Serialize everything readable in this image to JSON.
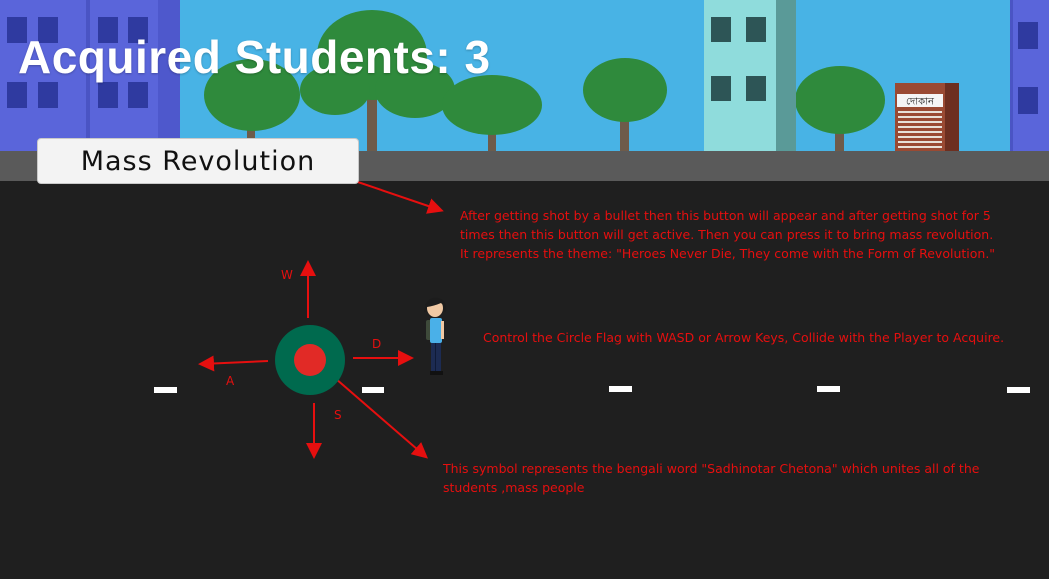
{
  "hud": {
    "acquired_label": "Acquired Students: 3"
  },
  "buttons": {
    "mass_revolution_label": "Mass Revolution"
  },
  "shop": {
    "sign_text": "দোকান"
  },
  "controls": {
    "keys": {
      "up": "W",
      "left": "A",
      "down": "S",
      "right": "D"
    }
  },
  "annotations": {
    "mass_revolution_note": "After getting shot by a bullet then this button will appear and after getting shot for 5 times then this button will get active. Then you can press it to bring mass revolution. It represents the theme: \"Heroes Never Die, They come with the Form of Revolution.\"",
    "control_note": "Control the Circle Flag with WASD or Arrow Keys, Collide with the Player to Acquire.",
    "symbol_note": "This symbol represents the bengali word \"Sadhinotar Chetona\" which unites all of the students ,mass people"
  },
  "colors": {
    "sky": "#48b3e5",
    "road": "#1f1f1f",
    "sidewalk": "#5a5a5a",
    "flag_green": "#006a4e",
    "flag_red": "#e12a26",
    "annotation_red": "#e60f0f",
    "building_blue": "#5a65da",
    "building_teal": "#8fdcdc"
  }
}
